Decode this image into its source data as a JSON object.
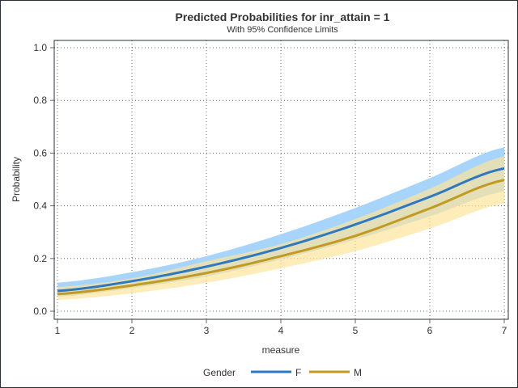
{
  "chart_data": {
    "type": "line",
    "title": "Predicted Probabilities for inr_attain = 1",
    "subtitle": "With 95% Confidence Limits",
    "xlabel": "measure",
    "ylabel": "Probability",
    "xlim": [
      1,
      7
    ],
    "ylim": [
      0,
      1
    ],
    "xticks": [
      "1",
      "2",
      "3",
      "4",
      "5",
      "6",
      "7"
    ],
    "yticks": [
      "0.0",
      "0.2",
      "0.4",
      "0.6",
      "0.8",
      "1.0"
    ],
    "grid": true,
    "legend": {
      "title": "Gender",
      "placement": "bottom"
    },
    "x": [
      1,
      2,
      3,
      4,
      5,
      6,
      7
    ],
    "series": [
      {
        "name": "F",
        "color": "#2e78c1",
        "band_color": "#a6d4fa",
        "values": [
          0.077,
          0.114,
          0.169,
          0.24,
          0.329,
          0.434,
          0.542
        ],
        "lower": [
          0.055,
          0.088,
          0.132,
          0.197,
          0.272,
          0.36,
          0.455
        ],
        "upper": [
          0.108,
          0.148,
          0.209,
          0.292,
          0.392,
          0.505,
          0.622
        ]
      },
      {
        "name": "M",
        "color": "#c39a21",
        "band_color": "#fde49b",
        "values": [
          0.065,
          0.098,
          0.145,
          0.209,
          0.286,
          0.39,
          0.498
        ],
        "lower": [
          0.043,
          0.068,
          0.108,
          0.163,
          0.228,
          0.314,
          0.409
        ],
        "upper": [
          0.092,
          0.125,
          0.19,
          0.255,
          0.35,
          0.465,
          0.588
        ]
      }
    ]
  }
}
